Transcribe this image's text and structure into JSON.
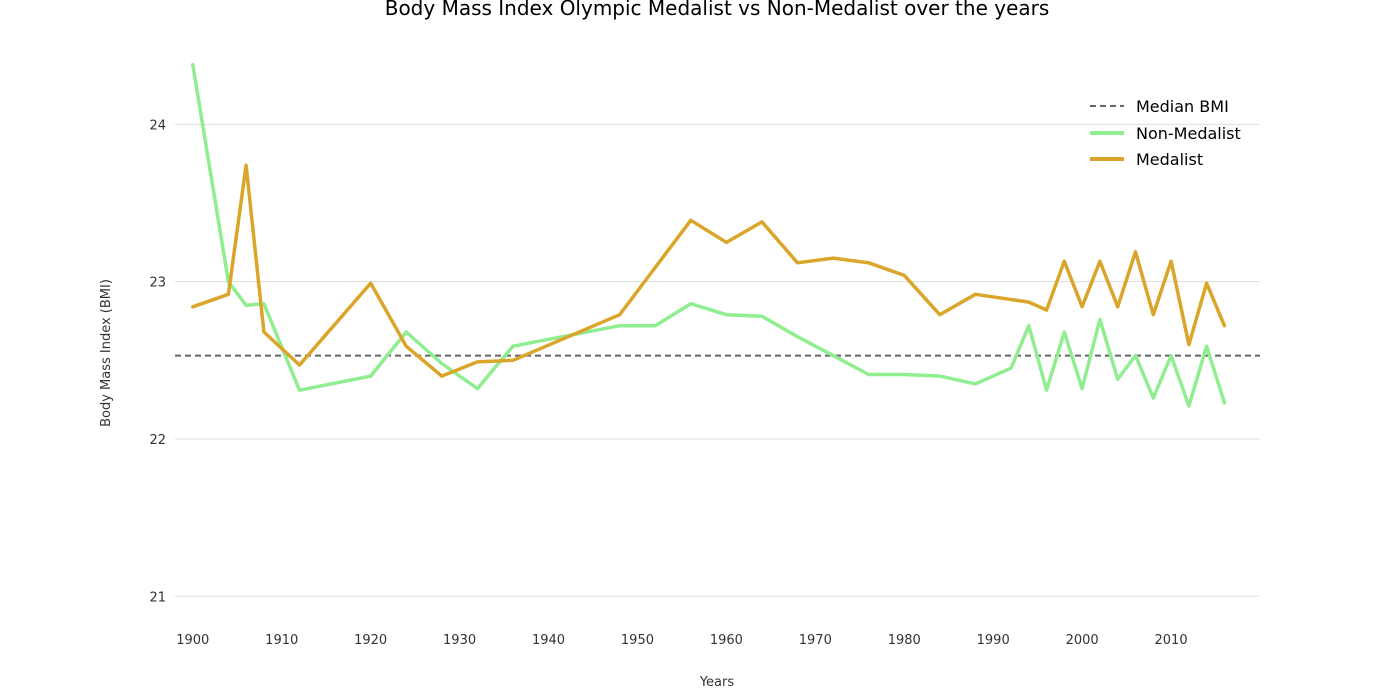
{
  "chart_data": {
    "type": "line",
    "title": "Body Mass Index Olympic Medalist vs Non-Medalist over the years",
    "xlabel": "Years",
    "ylabel": "Body Mass Index (BMI)",
    "xlim": [
      1898,
      2020
    ],
    "ylim": [
      20.9,
      24.6
    ],
    "xticks": [
      1900,
      1910,
      1920,
      1930,
      1940,
      1950,
      1960,
      1970,
      1980,
      1990,
      2000,
      2010
    ],
    "yticks": [
      21,
      22,
      23,
      24
    ],
    "grid": "horizontal",
    "legend_position": "top-right",
    "reference_line": {
      "name": "Median BMI",
      "value": 22.53,
      "color": "#666666",
      "style": "dashed"
    },
    "series": [
      {
        "name": "Non-Medalist",
        "color": "#90ee90",
        "points": [
          [
            1900,
            24.38
          ],
          [
            1904,
            23.0
          ],
          [
            1906,
            22.85
          ],
          [
            1908,
            22.86
          ],
          [
            1912,
            22.31
          ],
          [
            1920,
            22.4
          ],
          [
            1924,
            22.68
          ],
          [
            1928,
            22.48
          ],
          [
            1932,
            22.32
          ],
          [
            1936,
            22.59
          ],
          [
            1948,
            22.72
          ],
          [
            1952,
            22.72
          ],
          [
            1956,
            22.86
          ],
          [
            1960,
            22.79
          ],
          [
            1964,
            22.78
          ],
          [
            1968,
            22.65
          ],
          [
            1972,
            22.53
          ],
          [
            1976,
            22.41
          ],
          [
            1980,
            22.41
          ],
          [
            1984,
            22.4
          ],
          [
            1988,
            22.35
          ],
          [
            1992,
            22.45
          ],
          [
            1994,
            22.72
          ],
          [
            1996,
            22.31
          ],
          [
            1998,
            22.68
          ],
          [
            2000,
            22.32
          ],
          [
            2002,
            22.76
          ],
          [
            2004,
            22.38
          ],
          [
            2006,
            22.53
          ],
          [
            2008,
            22.26
          ],
          [
            2010,
            22.53
          ],
          [
            2012,
            22.21
          ],
          [
            2014,
            22.59
          ],
          [
            2016,
            22.23
          ]
        ]
      },
      {
        "name": "Medalist",
        "color": "#daa52a",
        "points": [
          [
            1900,
            22.84
          ],
          [
            1904,
            22.92
          ],
          [
            1906,
            23.74
          ],
          [
            1908,
            22.68
          ],
          [
            1912,
            22.47
          ],
          [
            1920,
            22.99
          ],
          [
            1924,
            22.59
          ],
          [
            1928,
            22.4
          ],
          [
            1932,
            22.49
          ],
          [
            1936,
            22.5
          ],
          [
            1948,
            22.79
          ],
          [
            1952,
            23.09
          ],
          [
            1956,
            23.39
          ],
          [
            1960,
            23.25
          ],
          [
            1964,
            23.38
          ],
          [
            1968,
            23.12
          ],
          [
            1972,
            23.15
          ],
          [
            1976,
            23.12
          ],
          [
            1980,
            23.04
          ],
          [
            1984,
            22.79
          ],
          [
            1988,
            22.92
          ],
          [
            1994,
            22.87
          ],
          [
            1996,
            22.82
          ],
          [
            1998,
            23.13
          ],
          [
            2000,
            22.84
          ],
          [
            2002,
            23.13
          ],
          [
            2004,
            22.84
          ],
          [
            2006,
            23.19
          ],
          [
            2008,
            22.79
          ],
          [
            2010,
            23.13
          ],
          [
            2012,
            22.6
          ],
          [
            2014,
            22.99
          ],
          [
            2016,
            22.72
          ]
        ]
      }
    ]
  }
}
